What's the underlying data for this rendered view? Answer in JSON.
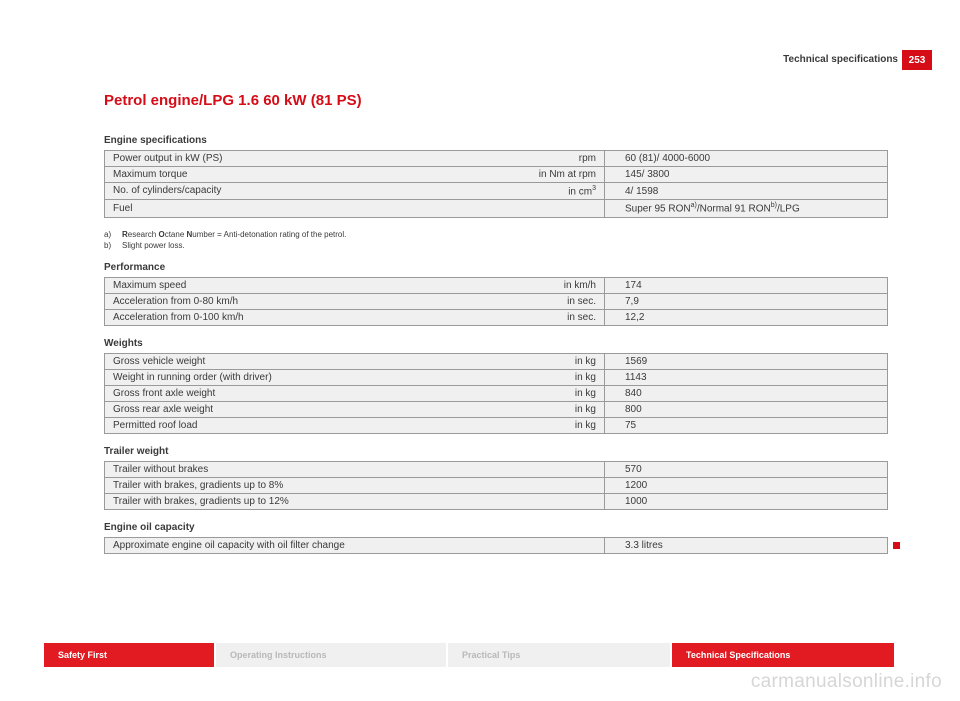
{
  "pageNumber": "253",
  "headerLabel": "Technical specifications",
  "title": "Petrol engine/LPG 1.6 60 kW (81 PS)",
  "sections": {
    "engine": {
      "title": "Engine specifications",
      "rows": [
        {
          "label": "Power output in kW (PS)",
          "unit": "rpm",
          "value": "60 (81)/ 4000-6000"
        },
        {
          "label": "Maximum torque",
          "unit": "in Nm at rpm",
          "value": "145/ 3800"
        },
        {
          "label": "No. of cylinders/capacity",
          "unit": "in cm",
          "unitSup": "3",
          "value": "4/ 1598"
        },
        {
          "label": "Fuel",
          "unit": "",
          "valueHtml": "Super 95 RON<sup>a)</sup>/Normal 91 RON<sup>b)</sup>/LPG"
        }
      ],
      "footnotes": [
        {
          "mark": "a)",
          "textHtml": "<b>R</b>esearch <b>O</b>ctane <b>N</b>umber = Anti-detonation rating of the petrol."
        },
        {
          "mark": "b)",
          "textHtml": "Slight power loss."
        }
      ]
    },
    "performance": {
      "title": "Performance",
      "rows": [
        {
          "label": "Maximum speed",
          "unit": "in km/h",
          "value": "174"
        },
        {
          "label": "Acceleration from 0-80 km/h",
          "unit": "in sec.",
          "value": "7,9"
        },
        {
          "label": "Acceleration from 0-100 km/h",
          "unit": "in sec.",
          "value": "12,2"
        }
      ]
    },
    "weights": {
      "title": "Weights",
      "rows": [
        {
          "label": "Gross vehicle weight",
          "unit": "in kg",
          "value": "1569"
        },
        {
          "label": "Weight in running order (with driver)",
          "unit": "in kg",
          "value": "1143"
        },
        {
          "label": "Gross front axle weight",
          "unit": "in kg",
          "value": "840"
        },
        {
          "label": "Gross rear axle weight",
          "unit": "in kg",
          "value": "800"
        },
        {
          "label": "Permitted roof load",
          "unit": "in kg",
          "value": "75"
        }
      ]
    },
    "trailer": {
      "title": "Trailer weight",
      "rows": [
        {
          "label": "Trailer without brakes",
          "unit": "",
          "value": "570"
        },
        {
          "label": "Trailer with brakes, gradients up to 8%",
          "unit": "",
          "value": "1200"
        },
        {
          "label": "Trailer with brakes, gradients up to 12%",
          "unit": "",
          "value": "1000"
        }
      ]
    },
    "oil": {
      "title": "Engine oil capacity",
      "rows": [
        {
          "label": "Approximate engine oil capacity with oil filter change",
          "unit": "",
          "value": "3.3 litres",
          "end": true
        }
      ]
    }
  },
  "footerTabs": [
    {
      "label": "Safety First",
      "cls": "red w1"
    },
    {
      "label": "Operating Instructions",
      "cls": "gray w2"
    },
    {
      "label": "Practical Tips",
      "cls": "gray w3"
    },
    {
      "label": "Technical Specifications",
      "cls": "red w4"
    }
  ],
  "watermark": "carmanualsonline.info"
}
